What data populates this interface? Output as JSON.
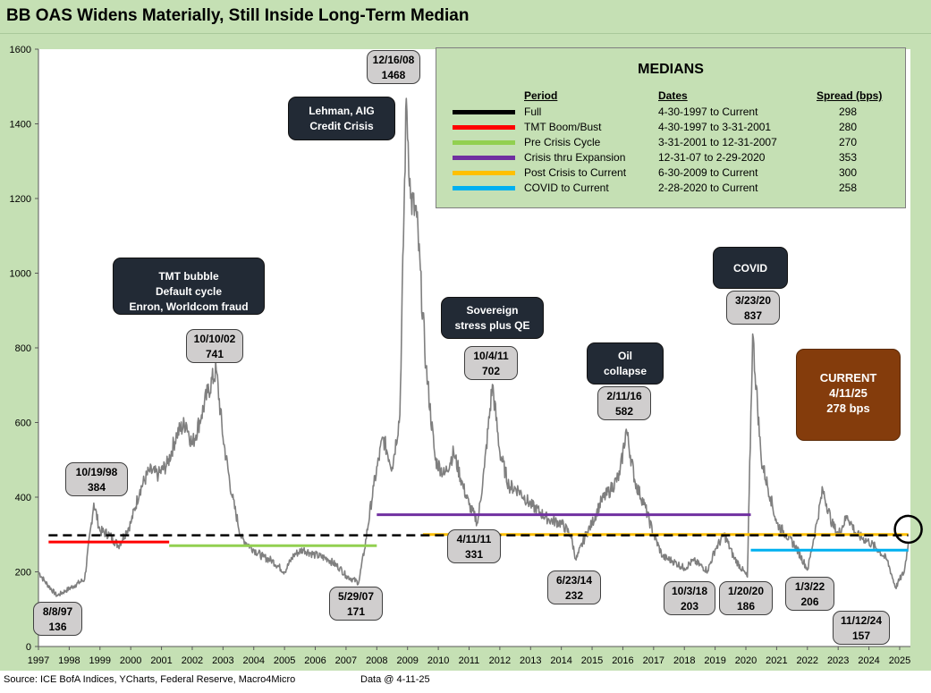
{
  "title": "BB OAS Widens Materially, Still Inside Long-Term Median",
  "footer": {
    "source": "Source: ICE BofA Indices, YCharts, Federal Reserve, Macro4Micro",
    "data_as_of": "Data @ 4-11-25"
  },
  "colors": {
    "background": "#c5e0b4",
    "series": "#7f7f7f",
    "full": "#000000",
    "tmt": "#ff0000",
    "pre_crisis": "#92d050",
    "crisis_expansion": "#7030a0",
    "post_crisis": "#ffc000",
    "covid": "#00b0f0",
    "current_box": "#843c0c"
  },
  "medians_table": {
    "title": "MEDIANS",
    "headers": {
      "period": "Period",
      "dates": "Dates",
      "spread": "Spread (bps)"
    },
    "rows": [
      {
        "period": "Full",
        "dates": "4-30-1997 to Current",
        "spread": "298",
        "color": "#000000",
        "dashed": true
      },
      {
        "period": "TMT Boom/Bust",
        "dates": "4-30-1997 to 3-31-2001",
        "spread": "280",
        "color": "#ff0000",
        "dashed": false
      },
      {
        "period": "Pre Crisis Cycle",
        "dates": "3-31-2001 to 12-31-2007",
        "spread": "270",
        "color": "#92d050",
        "dashed": false
      },
      {
        "period": "Crisis thru Expansion",
        "dates": "12-31-07 to 2-29-2020",
        "spread": "353",
        "color": "#7030a0",
        "dashed": false
      },
      {
        "period": "Post Crisis to Current",
        "dates": "6-30-2009 to Current",
        "spread": "300",
        "color": "#ffc000",
        "dashed": false
      },
      {
        "period": "COVID to Current",
        "dates": "2-28-2020 to Current",
        "spread": "258",
        "color": "#00b0f0",
        "dashed": false
      }
    ]
  },
  "event_boxes": {
    "tmt": [
      "TMT bubble",
      "Default cycle",
      "Enron, Worldcom fraud"
    ],
    "lehman": [
      "Lehman, AIG",
      "Credit Crisis"
    ],
    "sovereign": [
      "Sovereign",
      "stress plus QE"
    ],
    "oil": [
      "Oil",
      "collapse"
    ],
    "covid": [
      "COVID"
    ],
    "current": [
      "CURRENT",
      "4/11/25",
      "278 bps"
    ]
  },
  "point_labels": [
    {
      "date": "8/8/97",
      "value": "136"
    },
    {
      "date": "10/19/98",
      "value": "384"
    },
    {
      "date": "10/10/02",
      "value": "741"
    },
    {
      "date": "5/29/07",
      "value": "171"
    },
    {
      "date": "12/16/08",
      "value": "1468"
    },
    {
      "date": "10/4/11",
      "value": "702"
    },
    {
      "date": "4/11/11",
      "value": "331"
    },
    {
      "date": "6/23/14",
      "value": "232"
    },
    {
      "date": "2/11/16",
      "value": "582"
    },
    {
      "date": "10/3/18",
      "value": "203"
    },
    {
      "date": "1/20/20",
      "value": "186"
    },
    {
      "date": "3/23/20",
      "value": "837"
    },
    {
      "date": "1/3/22",
      "value": "206"
    },
    {
      "date": "11/12/24",
      "value": "157"
    }
  ],
  "chart_data": {
    "type": "line",
    "title": "BB OAS Widens Materially, Still Inside Long-Term Median",
    "xlabel": "",
    "ylabel": "",
    "ylim": [
      0,
      1600
    ],
    "xlim": [
      1997.0,
      2025.35
    ],
    "grid": false,
    "x_ticks": [
      "1997",
      "1998",
      "1999",
      "2000",
      "2001",
      "2002",
      "2003",
      "2004",
      "2005",
      "2006",
      "2007",
      "2008",
      "2009",
      "2010",
      "2011",
      "2012",
      "2013",
      "2014",
      "2015",
      "2016",
      "2017",
      "2018",
      "2019",
      "2020",
      "2021",
      "2022",
      "2023",
      "2024",
      "2025"
    ],
    "y_ticks": [
      "0",
      "200",
      "400",
      "600",
      "800",
      "1000",
      "1200",
      "1400",
      "1600"
    ],
    "series": [
      {
        "name": "BB OAS (bps)",
        "x": [
          1997.0,
          1997.2,
          1997.6,
          1997.9,
          1998.2,
          1998.5,
          1998.8,
          1999.0,
          1999.3,
          1999.6,
          2000.0,
          2000.3,
          2000.6,
          2000.9,
          2001.2,
          2001.5,
          2001.8,
          2002.0,
          2002.3,
          2002.5,
          2002.78,
          2003.0,
          2003.3,
          2003.6,
          2004.0,
          2004.3,
          2004.6,
          2005.0,
          2005.3,
          2005.6,
          2006.0,
          2006.4,
          2006.8,
          2007.0,
          2007.41,
          2007.6,
          2007.9,
          2008.2,
          2008.5,
          2008.75,
          2008.96,
          2009.1,
          2009.3,
          2009.6,
          2009.9,
          2010.2,
          2010.5,
          2010.8,
          2011.0,
          2011.28,
          2011.5,
          2011.76,
          2012.0,
          2012.3,
          2012.6,
          2013.0,
          2013.3,
          2013.6,
          2014.0,
          2014.3,
          2014.48,
          2014.8,
          2015.0,
          2015.3,
          2015.6,
          2015.9,
          2016.11,
          2016.4,
          2016.7,
          2017.0,
          2017.3,
          2017.6,
          2018.0,
          2018.3,
          2018.76,
          2019.0,
          2019.3,
          2019.6,
          2020.05,
          2020.22,
          2020.5,
          2020.8,
          2021.0,
          2021.3,
          2021.6,
          2022.01,
          2022.3,
          2022.5,
          2022.8,
          2023.0,
          2023.3,
          2023.6,
          2024.0,
          2024.3,
          2024.6,
          2024.87,
          2025.0,
          2025.15,
          2025.28
        ],
        "y": [
          200,
          175,
          136,
          150,
          165,
          180,
          384,
          310,
          300,
          270,
          330,
          420,
          470,
          460,
          490,
          570,
          600,
          540,
          620,
          680,
          741,
          560,
          400,
          290,
          260,
          240,
          230,
          200,
          245,
          260,
          245,
          235,
          210,
          190,
          171,
          260,
          430,
          560,
          480,
          620,
          1468,
          1200,
          1150,
          750,
          500,
          460,
          520,
          430,
          380,
          331,
          480,
          702,
          520,
          430,
          420,
          380,
          360,
          340,
          330,
          300,
          232,
          300,
          330,
          390,
          420,
          460,
          582,
          440,
          380,
          300,
          240,
          230,
          210,
          230,
          203,
          260,
          300,
          240,
          186,
          837,
          500,
          400,
          330,
          300,
          270,
          206,
          330,
          420,
          330,
          300,
          350,
          300,
          280,
          260,
          230,
          157,
          180,
          200,
          278
        ]
      }
    ],
    "medians": [
      {
        "name": "Full",
        "value": 298,
        "x_range": [
          1997.33,
          2025.28
        ]
      },
      {
        "name": "TMT Boom/Bust",
        "value": 280,
        "x_range": [
          1997.33,
          2001.25
        ]
      },
      {
        "name": "Pre Crisis Cycle",
        "value": 270,
        "x_range": [
          2001.25,
          2008.0
        ]
      },
      {
        "name": "Crisis thru Expansion",
        "value": 353,
        "x_range": [
          2008.0,
          2020.16
        ]
      },
      {
        "name": "Post Crisis to Current",
        "value": 300,
        "x_range": [
          2009.5,
          2025.28
        ]
      },
      {
        "name": "COVID to Current",
        "value": 258,
        "x_range": [
          2020.16,
          2025.28
        ]
      }
    ],
    "current": {
      "date": "4/11/25",
      "value": 278
    }
  }
}
